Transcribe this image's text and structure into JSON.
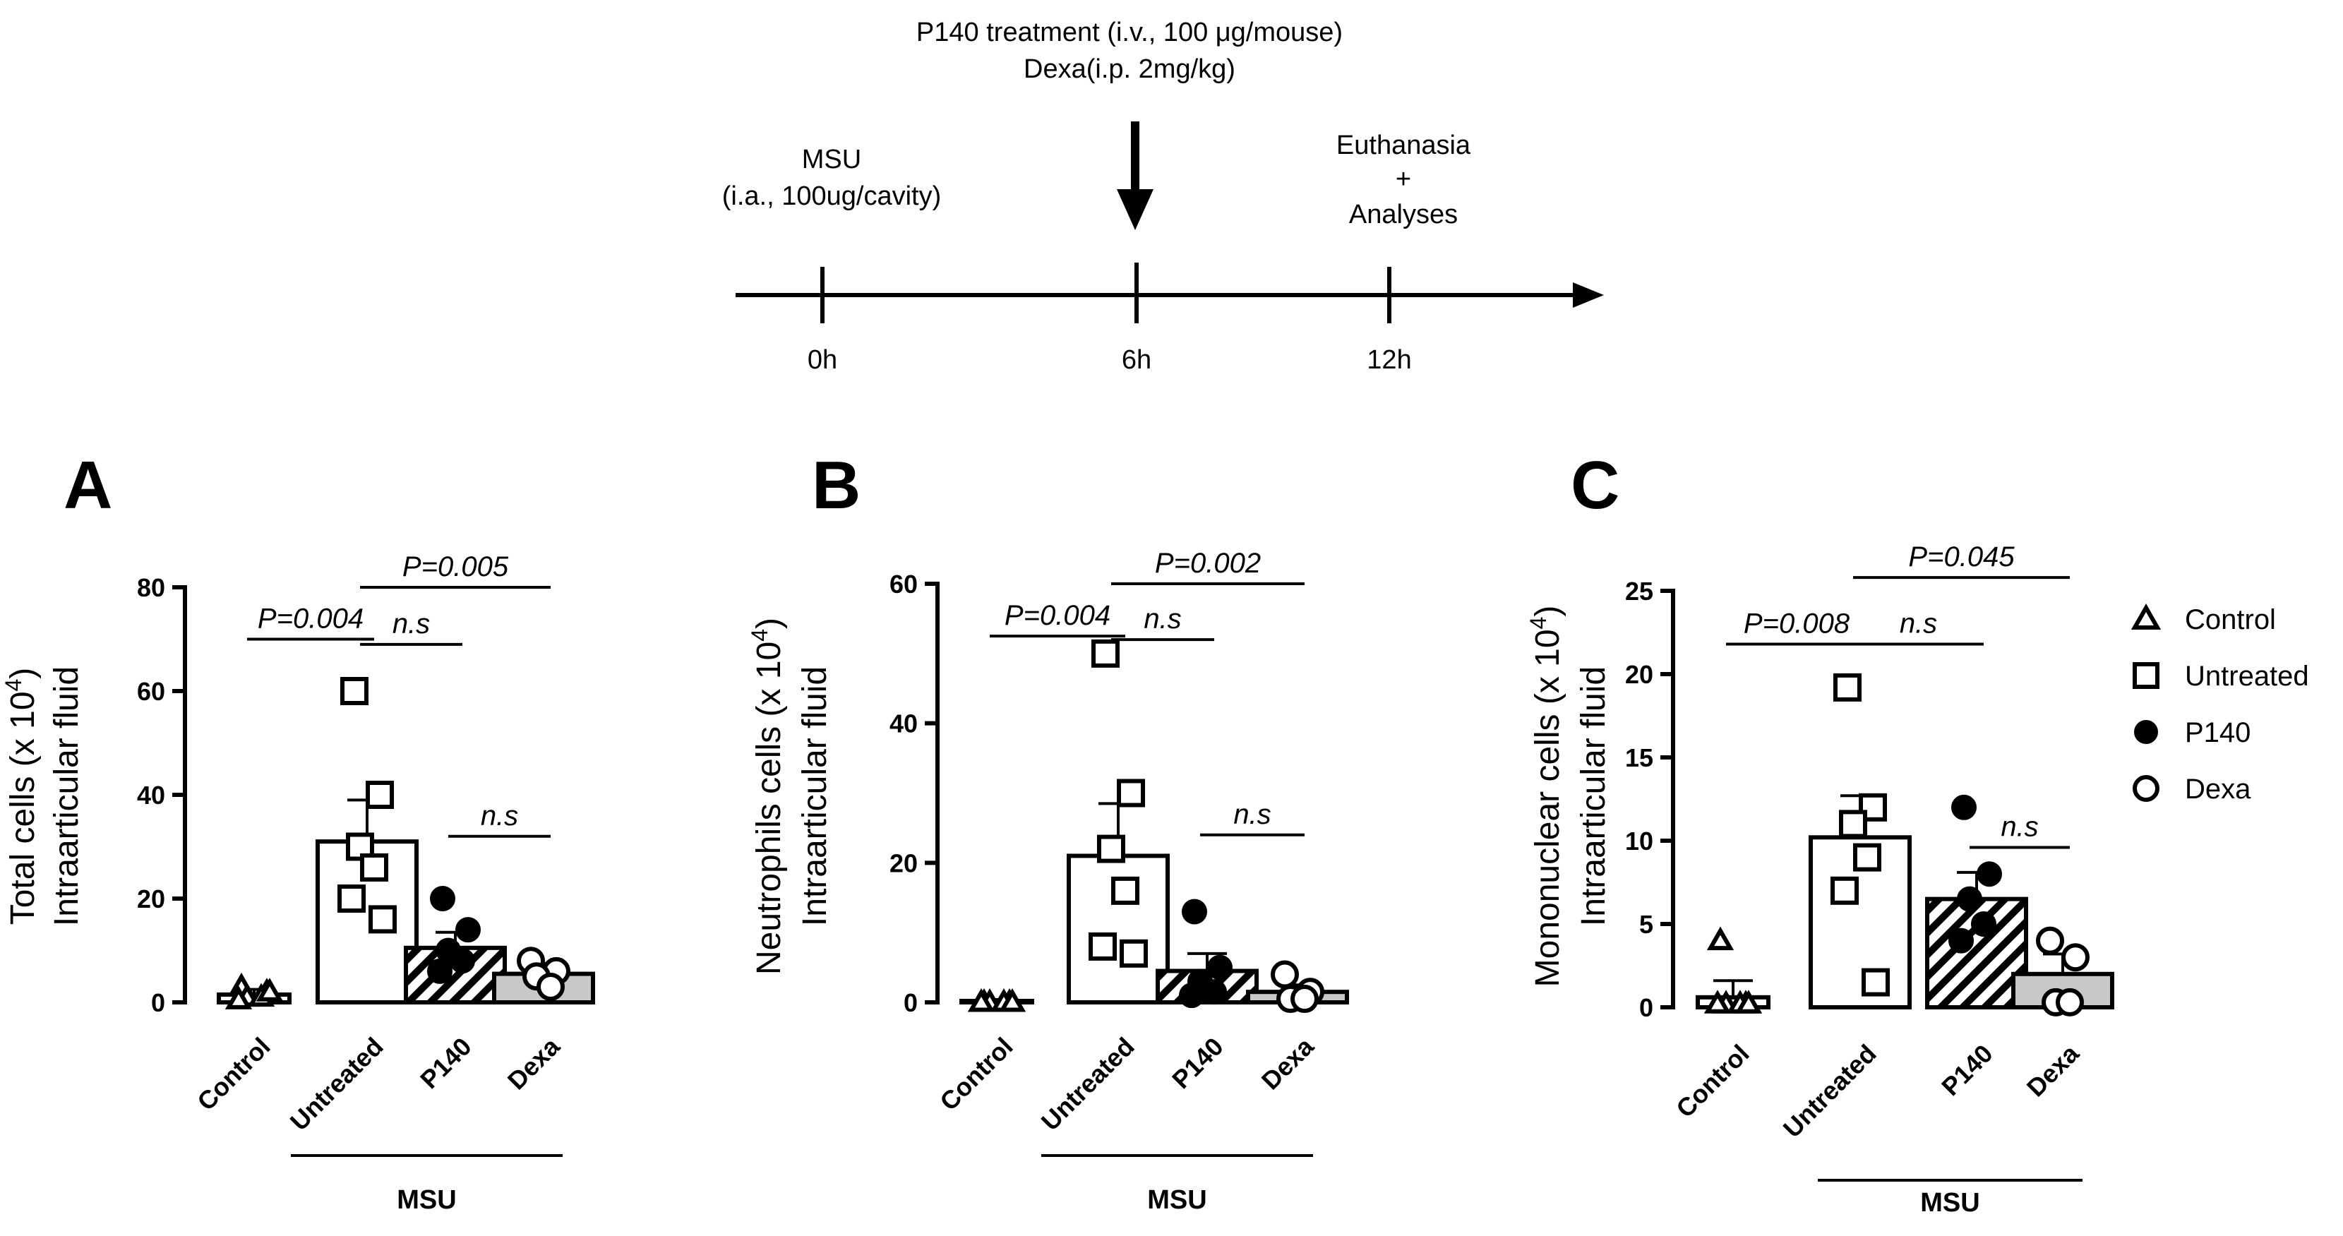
{
  "timeline": {
    "treatment_line1": "P140 treatment (i.v., 100 μg/mouse)",
    "treatment_line2": "Dexa(i.p. 2mg/kg)",
    "msu_line1": "MSU",
    "msu_line2": "(i.a., 100ug/cavity)",
    "euth_line1": "Euthanasia",
    "euth_line2": "+",
    "euth_line3": "Analyses",
    "t0": "0h",
    "t6": "6h",
    "t12": "12h"
  },
  "legend": {
    "items": [
      {
        "label": "Control",
        "marker": "triangle-open"
      },
      {
        "label": "Untreated",
        "marker": "square-open"
      },
      {
        "label": "P140",
        "marker": "circle-filled"
      },
      {
        "label": "Dexa",
        "marker": "circle-open"
      }
    ]
  },
  "colors": {
    "ink": "#000000",
    "dexa_bar": "#c8c8c8",
    "background": "#ffffff"
  },
  "chart_data": [
    {
      "type": "bar",
      "panel": "A",
      "ylabel_line1": "Total cells (x 10",
      "ylabel_sup": "4",
      "ylabel_close": ")",
      "ylabel_line2": "Intraarticular fluid",
      "ylim": [
        0,
        80
      ],
      "yticks": [
        0,
        20,
        40,
        60,
        80
      ],
      "categories": [
        "Control",
        "Untreated",
        "P140",
        "Dexa"
      ],
      "group_label": "MSU",
      "means": [
        1.5,
        31,
        10.5,
        5.5
      ],
      "sem": [
        1,
        8,
        3,
        2
      ],
      "points": [
        [
          3,
          2,
          1,
          1,
          0.5,
          2
        ],
        [
          60,
          40,
          30,
          26,
          20,
          16
        ],
        [
          20,
          14,
          10,
          8,
          6
        ],
        [
          8,
          6,
          5,
          3
        ]
      ],
      "comparisons": [
        {
          "label": "P=0.004",
          "from": 0,
          "to": 1,
          "y": 70
        },
        {
          "label": "n.s",
          "from": 1,
          "to": 2,
          "y": 69
        },
        {
          "label": "P=0.005",
          "from": 1,
          "to": 3,
          "y": 80
        },
        {
          "label": "n.s",
          "from": 2,
          "to": 3,
          "y": 32
        }
      ]
    },
    {
      "type": "bar",
      "panel": "B",
      "ylabel_line1": "Neutrophils cells (x 10",
      "ylabel_sup": "4",
      "ylabel_close": ")",
      "ylabel_line2": "Intraarticular fluid",
      "ylim": [
        0,
        60
      ],
      "yticks": [
        0,
        20,
        40,
        60
      ],
      "categories": [
        "Control",
        "Untreated",
        "P140",
        "Dexa"
      ],
      "group_label": "MSU",
      "means": [
        0.2,
        21,
        4.5,
        1.5
      ],
      "sem": [
        0.2,
        7.5,
        2.5,
        1
      ],
      "points": [
        [
          0,
          0,
          0,
          0,
          0,
          0
        ],
        [
          50,
          30,
          22,
          16,
          8,
          7
        ],
        [
          13,
          5,
          3,
          1.5,
          1
        ],
        [
          4,
          1.5,
          0.5,
          0.5
        ]
      ],
      "comparisons": [
        {
          "label": "P=0.004",
          "from": 0,
          "to": 1,
          "y": 52.5
        },
        {
          "label": "n.s",
          "from": 1,
          "to": 2,
          "y": 52
        },
        {
          "label": "P=0.002",
          "from": 1,
          "to": 3,
          "y": 60
        },
        {
          "label": "n.s",
          "from": 2,
          "to": 3,
          "y": 24
        }
      ]
    },
    {
      "type": "bar",
      "panel": "C",
      "ylabel_line1": "Mononuclear cells (x 10",
      "ylabel_sup": "4",
      "ylabel_close": ")",
      "ylabel_line2": "Intraarticular fluid",
      "ylim": [
        0,
        25
      ],
      "yticks": [
        0,
        5,
        10,
        15,
        20,
        25
      ],
      "categories": [
        "Control",
        "Untreated",
        "P140",
        "Dexa"
      ],
      "group_label": "MSU",
      "means": [
        0.6,
        10.2,
        6.5,
        2
      ],
      "sem": [
        1,
        2.5,
        1.6,
        1.2
      ],
      "points": [
        [
          4,
          0.2,
          0.2,
          0.2,
          0.2,
          0.2
        ],
        [
          19.2,
          12,
          11,
          9,
          7,
          1.5
        ],
        [
          12,
          8,
          6.5,
          5,
          4
        ],
        [
          4,
          3,
          0.3,
          0.3
        ]
      ],
      "comparisons": [
        {
          "label": "P=0.008",
          "from": 0,
          "to": 1,
          "y": 21.8
        },
        {
          "label": "n.s",
          "from": 1,
          "to": 2,
          "y": 21.8
        },
        {
          "label": "P=0.045",
          "from": 1,
          "to": 3,
          "y": 25.8
        },
        {
          "label": "n.s",
          "from": 2,
          "to": 3,
          "y": 9.6
        }
      ]
    }
  ]
}
